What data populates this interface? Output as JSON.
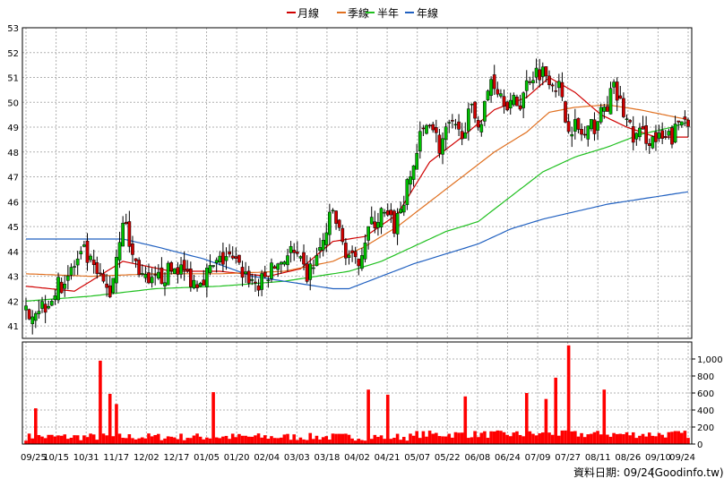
{
  "colors": {
    "up_candle": "#00c000",
    "down_candle": "#d00000",
    "month_line": "#d00000",
    "quarter_line": "#e07020",
    "halfyear_line": "#20c020",
    "year_line": "#2060c0",
    "volume_bar": "#ff0000",
    "grid": "#b0b0b0",
    "text": "#000000"
  },
  "legend": {
    "month": "月線",
    "quarter": "季線",
    "halfyear": "半年",
    "year": "年線"
  },
  "footer": {
    "data_date": "資料日期: 09/24",
    "source": "(Goodinfo.tw)"
  },
  "chart_data": [
    {
      "type": "candlestick",
      "name": "price",
      "ylim": [
        40.5,
        53
      ],
      "yticks": [
        41,
        42,
        43,
        44,
        45,
        46,
        47,
        48,
        49,
        50,
        51,
        52,
        53
      ],
      "x_tick_labels": [
        "09/25",
        "10/15",
        "10/31",
        "11/17",
        "12/02",
        "12/17",
        "01/05",
        "01/20",
        "02/04",
        "03/03",
        "03/18",
        "04/02",
        "04/21",
        "05/07",
        "05/22",
        "06/08",
        "06/24",
        "07/09",
        "07/27",
        "08/11",
        "08/26",
        "09/10",
        "09/24"
      ],
      "close_anchors": [
        [
          0,
          41.6
        ],
        [
          6,
          41.9
        ],
        [
          12,
          42.9
        ],
        [
          18,
          43.9
        ],
        [
          22,
          43.0
        ],
        [
          26,
          42.3
        ],
        [
          30,
          45.4
        ],
        [
          33,
          43.8
        ],
        [
          38,
          42.5
        ],
        [
          42,
          43.0
        ],
        [
          47,
          43.4
        ],
        [
          52,
          42.8
        ],
        [
          57,
          43.2
        ],
        [
          62,
          43.8
        ],
        [
          67,
          43.2
        ],
        [
          72,
          42.6
        ],
        [
          77,
          43.4
        ],
        [
          82,
          44.0
        ],
        [
          87,
          43.0
        ],
        [
          91,
          44.0
        ],
        [
          95,
          45.6
        ],
        [
          98,
          44.3
        ],
        [
          102,
          43.4
        ],
        [
          106,
          44.9
        ],
        [
          110,
          45.5
        ],
        [
          114,
          45.0
        ],
        [
          118,
          46.5
        ],
        [
          122,
          48.5
        ],
        [
          125,
          49.4
        ],
        [
          128,
          48.2
        ],
        [
          131,
          49.0
        ],
        [
          134,
          48.7
        ],
        [
          138,
          49.6
        ],
        [
          141,
          49.2
        ],
        [
          144,
          51.0
        ],
        [
          147,
          50.4
        ],
        [
          150,
          49.9
        ],
        [
          153,
          50.0
        ],
        [
          156,
          51.1
        ],
        [
          159,
          51.3
        ],
        [
          162,
          51.1
        ],
        [
          165,
          50.6
        ],
        [
          167,
          49.3
        ],
        [
          170,
          49.0
        ],
        [
          173,
          48.6
        ],
        [
          176,
          49.1
        ],
        [
          179,
          49.7
        ],
        [
          182,
          50.5
        ],
        [
          185,
          49.6
        ],
        [
          188,
          48.6
        ],
        [
          191,
          48.7
        ],
        [
          194,
          48.5
        ],
        [
          197,
          48.4
        ],
        [
          200,
          48.6
        ],
        [
          203,
          49.3
        ],
        [
          205,
          49.4
        ]
      ],
      "series": [
        {
          "name": "月線",
          "values": [
            [
              0,
              42.6
            ],
            [
              15,
              42.4
            ],
            [
              30,
              43.6
            ],
            [
              45,
              43.2
            ],
            [
              60,
              43.2
            ],
            [
              75,
              43.0
            ],
            [
              85,
              43.3
            ],
            [
              95,
              44.4
            ],
            [
              105,
              44.6
            ],
            [
              115,
              45.5
            ],
            [
              125,
              47.6
            ],
            [
              135,
              48.6
            ],
            [
              145,
              49.7
            ],
            [
              155,
              50.2
            ],
            [
              162,
              51.0
            ],
            [
              170,
              50.4
            ],
            [
              178,
              49.5
            ],
            [
              186,
              49.0
            ],
            [
              195,
              48.6
            ],
            [
              205,
              48.6
            ]
          ]
        },
        {
          "name": "季線",
          "values": [
            [
              0,
              43.1
            ],
            [
              20,
              43.0
            ],
            [
              40,
              43.1
            ],
            [
              60,
              43.1
            ],
            [
              80,
              43.2
            ],
            [
              95,
              43.6
            ],
            [
              105,
              44.2
            ],
            [
              115,
              45.0
            ],
            [
              125,
              46.0
            ],
            [
              135,
              47.0
            ],
            [
              145,
              48.0
            ],
            [
              155,
              48.8
            ],
            [
              162,
              49.6
            ],
            [
              170,
              49.8
            ],
            [
              180,
              49.9
            ],
            [
              190,
              49.7
            ],
            [
              205,
              49.3
            ]
          ]
        },
        {
          "name": "半年",
          "values": [
            [
              0,
              42.0
            ],
            [
              20,
              42.2
            ],
            [
              40,
              42.5
            ],
            [
              60,
              42.6
            ],
            [
              80,
              42.8
            ],
            [
              90,
              43.0
            ],
            [
              100,
              43.2
            ],
            [
              110,
              43.6
            ],
            [
              120,
              44.2
            ],
            [
              130,
              44.8
            ],
            [
              140,
              45.2
            ],
            [
              150,
              46.2
            ],
            [
              160,
              47.2
            ],
            [
              170,
              47.8
            ],
            [
              180,
              48.2
            ],
            [
              190,
              48.7
            ],
            [
              200,
              49.0
            ],
            [
              205,
              49.2
            ]
          ]
        },
        {
          "name": "年線",
          "values": [
            [
              0,
              44.5
            ],
            [
              20,
              44.5
            ],
            [
              30,
              44.5
            ],
            [
              40,
              44.2
            ],
            [
              55,
              43.7
            ],
            [
              70,
              43.0
            ],
            [
              85,
              42.7
            ],
            [
              95,
              42.5
            ],
            [
              100,
              42.5
            ],
            [
              110,
              43.0
            ],
            [
              120,
              43.5
            ],
            [
              130,
              43.9
            ],
            [
              140,
              44.3
            ],
            [
              150,
              44.9
            ],
            [
              160,
              45.3
            ],
            [
              170,
              45.6
            ],
            [
              180,
              45.9
            ],
            [
              190,
              46.1
            ],
            [
              200,
              46.3
            ],
            [
              205,
              46.4
            ]
          ]
        }
      ]
    },
    {
      "type": "bar",
      "name": "volume",
      "ylim": [
        0,
        1200
      ],
      "yticks": [
        0,
        200,
        400,
        600,
        800,
        1000
      ],
      "ytick_labels": [
        "0",
        "200",
        "400",
        "600",
        "800",
        "1,000"
      ],
      "spikes": [
        [
          3,
          420
        ],
        [
          23,
          980
        ],
        [
          26,
          590
        ],
        [
          28,
          470
        ],
        [
          58,
          610
        ],
        [
          106,
          640
        ],
        [
          112,
          580
        ],
        [
          136,
          560
        ],
        [
          155,
          600
        ],
        [
          161,
          530
        ],
        [
          164,
          780
        ],
        [
          168,
          1160
        ],
        [
          179,
          640
        ]
      ]
    }
  ]
}
